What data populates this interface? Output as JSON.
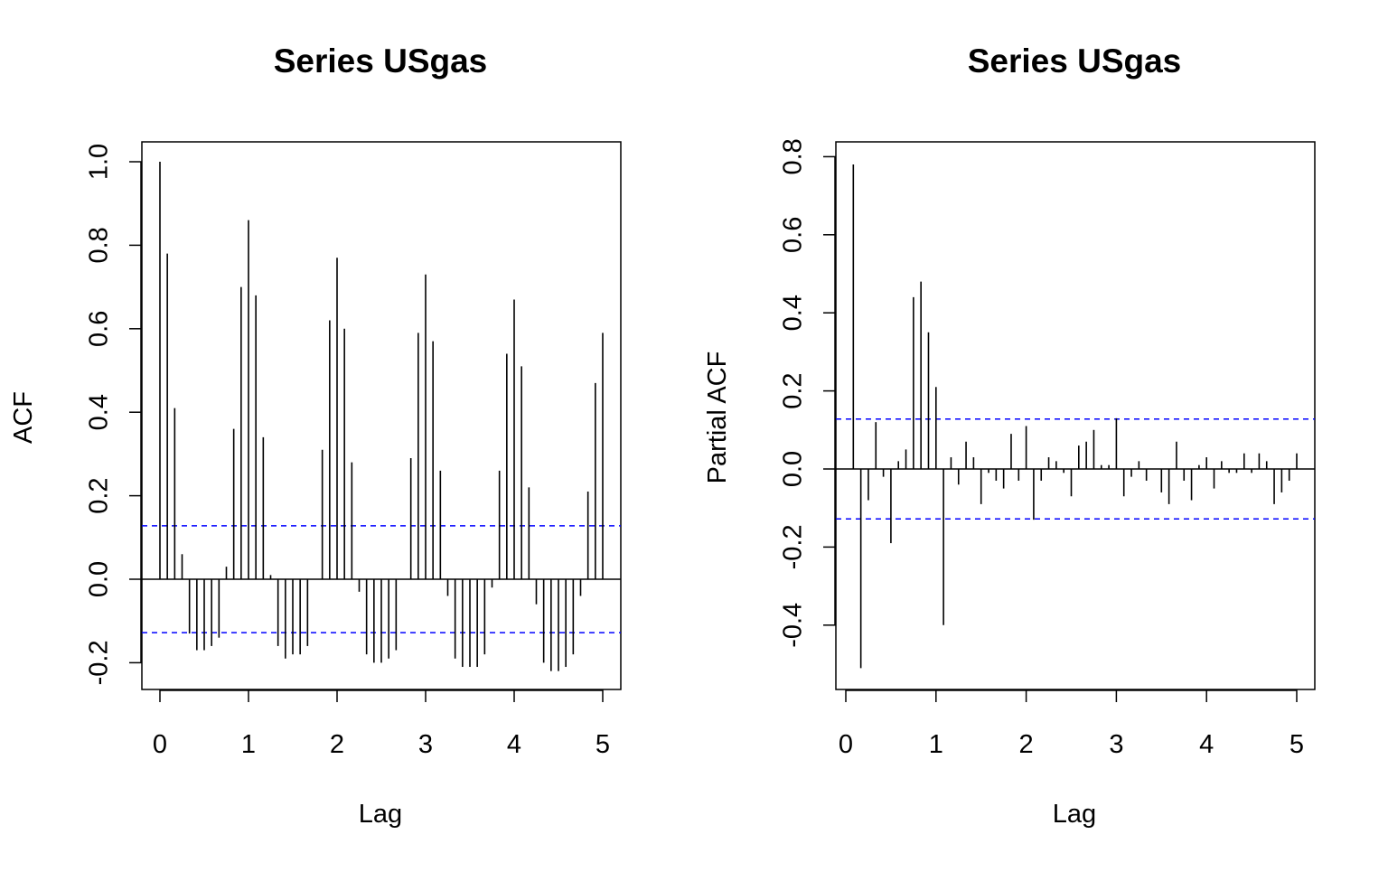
{
  "chart_data": [
    {
      "type": "bar",
      "style": "vertical lines (lag plot)",
      "title": "Series  USgas",
      "xlabel": "Lag",
      "ylabel": "ACF",
      "xlim": [
        0,
        5
      ],
      "ylim": [
        -0.25,
        1.0
      ],
      "xticks": [
        "0",
        "1",
        "2",
        "3",
        "4",
        "5"
      ],
      "yticks": [
        "-0.2",
        "0.0",
        "0.2",
        "0.4",
        "0.6",
        "0.8",
        "1.0"
      ],
      "confidence_bound": 0.128,
      "bound_color": "#0000ff",
      "x": [
        0,
        0.0833,
        0.1667,
        0.25,
        0.3333,
        0.4167,
        0.5,
        0.5833,
        0.6667,
        0.75,
        0.8333,
        0.9167,
        1.0,
        1.0833,
        1.1667,
        1.25,
        1.3333,
        1.4167,
        1.5,
        1.5833,
        1.6667,
        1.75,
        1.8333,
        1.9167,
        2.0,
        2.0833,
        2.1667,
        2.25,
        2.3333,
        2.4167,
        2.5,
        2.5833,
        2.6667,
        2.75,
        2.8333,
        2.9167,
        3.0,
        3.0833,
        3.1667,
        3.25,
        3.3333,
        3.4167,
        3.5,
        3.5833,
        3.6667,
        3.75,
        3.8333,
        3.9167,
        4.0,
        4.0833,
        4.1667,
        4.25,
        4.3333,
        4.4167,
        4.5,
        4.5833,
        4.6667,
        4.75,
        4.8333,
        4.9167,
        5.0
      ],
      "values": [
        1.0,
        0.78,
        0.41,
        0.06,
        -0.13,
        -0.17,
        -0.17,
        -0.16,
        -0.14,
        0.03,
        0.36,
        0.7,
        0.86,
        0.68,
        0.34,
        0.01,
        -0.16,
        -0.19,
        -0.18,
        -0.18,
        -0.16,
        0.0,
        0.31,
        0.62,
        0.77,
        0.6,
        0.28,
        -0.03,
        -0.18,
        -0.2,
        -0.2,
        -0.19,
        -0.17,
        0.0,
        0.29,
        0.59,
        0.73,
        0.57,
        0.26,
        -0.04,
        -0.19,
        -0.21,
        -0.21,
        -0.21,
        -0.18,
        -0.02,
        0.26,
        0.54,
        0.67,
        0.51,
        0.22,
        -0.06,
        -0.2,
        -0.22,
        -0.22,
        -0.21,
        -0.18,
        -0.04,
        0.21,
        0.47,
        0.59
      ]
    },
    {
      "type": "bar",
      "style": "vertical lines (lag plot)",
      "title": "Series  USgas",
      "xlabel": "Lag",
      "ylabel": "Partial ACF",
      "xlim": [
        0,
        5
      ],
      "ylim": [
        -0.52,
        0.8
      ],
      "xticks": [
        "0",
        "1",
        "2",
        "3",
        "4",
        "5"
      ],
      "yticks": [
        "-0.4",
        "-0.2",
        "0.0",
        "0.2",
        "0.4",
        "0.6",
        "0.8"
      ],
      "confidence_bound": 0.128,
      "bound_color": "#0000ff",
      "x": [
        0.0833,
        0.1667,
        0.25,
        0.3333,
        0.4167,
        0.5,
        0.5833,
        0.6667,
        0.75,
        0.8333,
        0.9167,
        1.0,
        1.0833,
        1.1667,
        1.25,
        1.3333,
        1.4167,
        1.5,
        1.5833,
        1.6667,
        1.75,
        1.8333,
        1.9167,
        2.0,
        2.0833,
        2.1667,
        2.25,
        2.3333,
        2.4167,
        2.5,
        2.5833,
        2.6667,
        2.75,
        2.8333,
        2.9167,
        3.0,
        3.0833,
        3.1667,
        3.25,
        3.3333,
        3.4167,
        3.5,
        3.5833,
        3.6667,
        3.75,
        3.8333,
        3.9167,
        4.0,
        4.0833,
        4.1667,
        4.25,
        4.3333,
        4.4167,
        4.5,
        4.5833,
        4.6667,
        4.75,
        4.8333,
        4.9167,
        5.0
      ],
      "values": [
        0.78,
        -0.51,
        -0.08,
        0.12,
        -0.02,
        -0.19,
        0.02,
        0.05,
        0.44,
        0.48,
        0.35,
        0.21,
        -0.4,
        0.03,
        -0.04,
        0.07,
        0.03,
        -0.09,
        -0.01,
        -0.03,
        -0.05,
        0.09,
        -0.03,
        0.11,
        -0.13,
        -0.03,
        0.03,
        0.02,
        -0.01,
        -0.07,
        0.06,
        0.07,
        0.1,
        0.01,
        0.01,
        0.13,
        -0.07,
        -0.02,
        0.02,
        -0.03,
        0.0,
        -0.06,
        -0.09,
        0.07,
        -0.03,
        -0.08,
        0.01,
        0.03,
        -0.05,
        0.02,
        -0.01,
        -0.01,
        0.04,
        -0.01,
        0.04,
        0.02,
        -0.09,
        -0.06,
        -0.03,
        0.04
      ]
    }
  ]
}
